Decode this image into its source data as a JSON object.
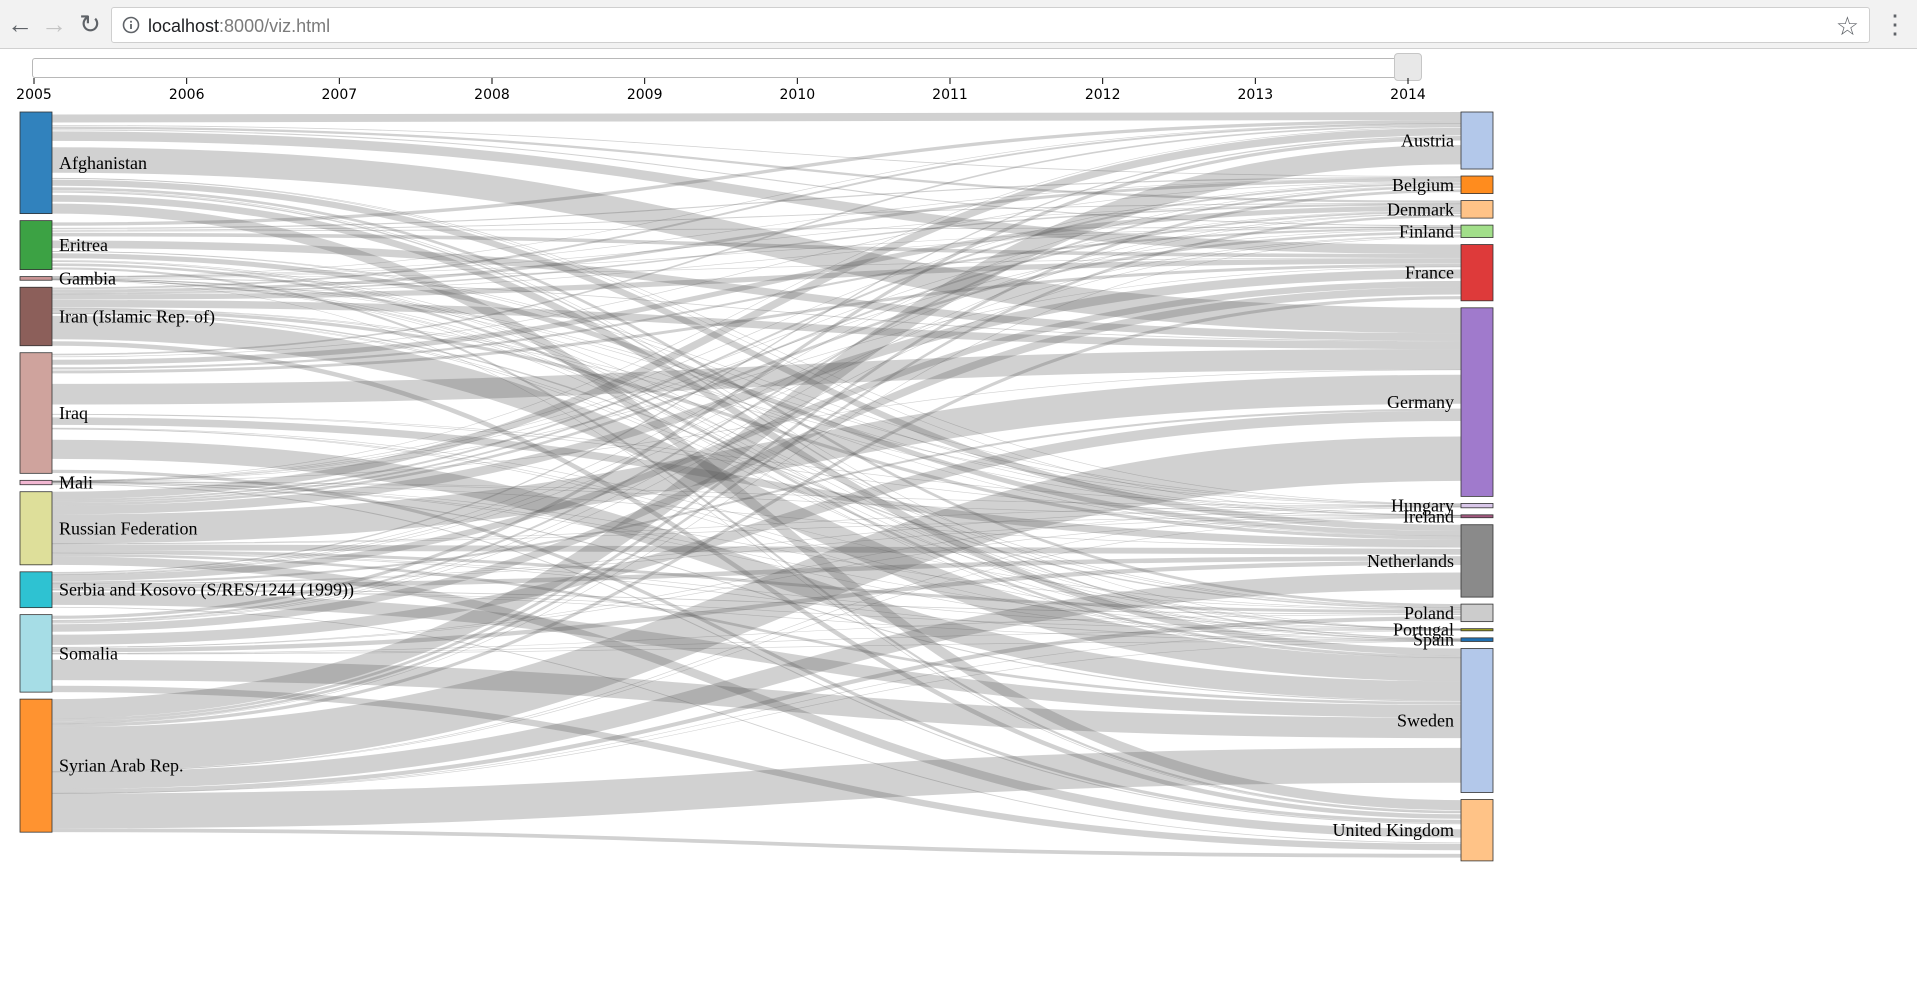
{
  "browser": {
    "url_host": "localhost",
    "url_rest": ":8000/viz.html"
  },
  "slider": {
    "years": [
      "2005",
      "2006",
      "2007",
      "2008",
      "2009",
      "2010",
      "2011",
      "2012",
      "2013",
      "2014"
    ],
    "selected_year": "2014"
  },
  "sankey": {
    "link_color": "#555555",
    "origins": [
      {
        "name": "Afghanistan",
        "color": "#3182bd",
        "share": 0.139
      },
      {
        "name": "Eritrea",
        "color": "#3ca244",
        "share": 0.067
      },
      {
        "name": "Gambia",
        "color": "#c89494",
        "share": 0.005
      },
      {
        "name": "Iran (Islamic Rep. of)",
        "color": "#8c5f5a",
        "share": 0.08
      },
      {
        "name": "Iraq",
        "color": "#cfa39d",
        "share": 0.165
      },
      {
        "name": "Mali",
        "color": "#f2b7d2",
        "share": 0.006
      },
      {
        "name": "Russian Federation",
        "color": "#dedf9a",
        "share": 0.1
      },
      {
        "name": "Serbia and Kosovo (S/RES/1244 (1999))",
        "color": "#2ec2d2",
        "share": 0.049
      },
      {
        "name": "Somalia",
        "color": "#a6dde6",
        "share": 0.106
      },
      {
        "name": "Syrian Arab Rep.",
        "color": "#ff9330",
        "share": 0.182
      }
    ],
    "destinations": [
      {
        "name": "Austria",
        "color": "#b3c8ea",
        "share": 0.078
      },
      {
        "name": "Belgium",
        "color": "#ff8c1e",
        "share": 0.024
      },
      {
        "name": "Denmark",
        "color": "#ffc387",
        "share": 0.024
      },
      {
        "name": "Finland",
        "color": "#a2df8a",
        "share": 0.017
      },
      {
        "name": "France",
        "color": "#de3a3a",
        "share": 0.077
      },
      {
        "name": "Germany",
        "color": "#a07acc",
        "share": 0.258
      },
      {
        "name": "Hungary",
        "color": "#d9c7e9",
        "share": 0.006
      },
      {
        "name": "Ireland",
        "color": "#a1587e",
        "share": 0.004
      },
      {
        "name": "Netherlands",
        "color": "#8a8a8a",
        "share": 0.099
      },
      {
        "name": "Poland",
        "color": "#cccccc",
        "share": 0.024
      },
      {
        "name": "Portugal",
        "color": "#9b9c20",
        "share": 0.003
      },
      {
        "name": "Spain",
        "color": "#1f6fb0",
        "share": 0.005
      },
      {
        "name": "Sweden",
        "color": "#b3c8ea",
        "share": 0.197
      },
      {
        "name": "United Kingdom",
        "color": "#ffc387",
        "share": 0.084
      }
    ]
  }
}
